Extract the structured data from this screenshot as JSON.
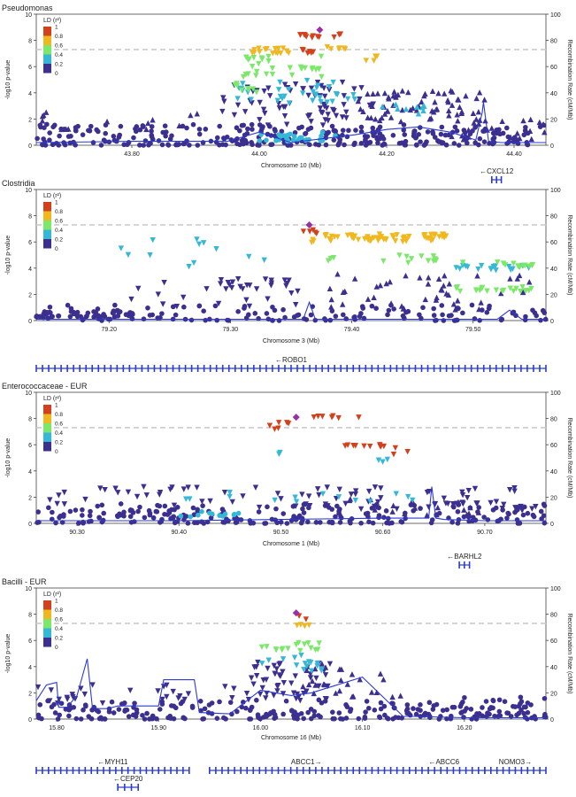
{
  "colors": {
    "ld_0_0.2": "#3b2f8f",
    "ld_0.2_0.4": "#35b8d6",
    "ld_0.4_0.6": "#7be86a",
    "ld_0.6_0.8": "#f1b71f",
    "ld_0.8_1": "#d3401c",
    "lead": "#9b2fa8",
    "na": "#aaaaaa",
    "recomb": "#2b3bd1",
    "threshold": "#cccccc",
    "gene": "#2b3bd1"
  },
  "legend": {
    "title": "LD (r²)",
    "ticks": [
      "1",
      "0.8",
      "0.6",
      "0.4",
      "0.2",
      "0"
    ]
  },
  "y_left_label": "-log10 p-value",
  "y_right_label": "Recombination Rate (cM/Mb)",
  "chart_data": [
    {
      "type": "scatter",
      "title": "Pseudomonas",
      "xlabel": "Chromosome 10 (Mb)",
      "xlim": [
        43.65,
        44.45
      ],
      "xticks": [
        "43.80",
        "44.00",
        "44.20",
        "44.40"
      ],
      "xtick_values": [
        43.8,
        44.0,
        44.2,
        44.4
      ],
      "ylim": [
        0,
        10
      ],
      "yticks": [
        "0",
        "2",
        "4",
        "6",
        "8",
        "10"
      ],
      "y2ticks": [
        "0",
        "20",
        "40",
        "60",
        "80",
        "100"
      ],
      "threshold": 7.3,
      "lead": {
        "x": 44.095,
        "y": 8.8
      },
      "clusters": [
        {
          "x0": 44.06,
          "x1": 44.13,
          "y0": 8.2,
          "y1": 8.5,
          "n": 12,
          "ld": 4,
          "shape": "down"
        },
        {
          "x0": 43.98,
          "x1": 44.05,
          "y0": 7.0,
          "y1": 7.4,
          "n": 16,
          "ld": 3,
          "shape": "down"
        },
        {
          "x0": 44.05,
          "x1": 44.09,
          "y0": 7.0,
          "y1": 7.3,
          "n": 6,
          "ld": 4,
          "shape": "down"
        },
        {
          "x0": 44.1,
          "x1": 44.14,
          "y0": 7.2,
          "y1": 7.5,
          "n": 6,
          "ld": 3,
          "shape": "down"
        },
        {
          "x0": 44.16,
          "x1": 44.19,
          "y0": 6.4,
          "y1": 6.8,
          "n": 4,
          "ld": 3,
          "shape": "down"
        },
        {
          "x0": 43.96,
          "x1": 44.1,
          "y0": 5.2,
          "y1": 7.0,
          "n": 30,
          "ld": 2,
          "shape": "down"
        },
        {
          "x0": 43.96,
          "x1": 44.0,
          "y0": 4.0,
          "y1": 4.8,
          "n": 8,
          "ld": 2,
          "shape": "down"
        },
        {
          "x0": 43.95,
          "x1": 44.15,
          "y0": 3.2,
          "y1": 5.0,
          "n": 34,
          "ld": 1,
          "shape": "down"
        },
        {
          "x0": 43.94,
          "x1": 44.18,
          "y0": 1.5,
          "y1": 4.8,
          "n": 70,
          "ld": 0,
          "shape": "down"
        },
        {
          "x0": 44.15,
          "x1": 44.36,
          "y0": 1.8,
          "y1": 4.2,
          "n": 70,
          "ld": 0,
          "shape": "up"
        },
        {
          "x0": 44.18,
          "x1": 44.28,
          "y0": 2.4,
          "y1": 3.2,
          "n": 10,
          "ld": 1,
          "shape": "up"
        },
        {
          "x0": 44.0,
          "x1": 44.12,
          "y0": 0.3,
          "y1": 1.0,
          "n": 28,
          "ld": 1,
          "shape": "circle"
        },
        {
          "x0": 43.65,
          "x1": 44.45,
          "y0": 0.0,
          "y1": 1.6,
          "n": 320,
          "ld": 0,
          "shape": "circle"
        },
        {
          "x0": 43.65,
          "x1": 43.92,
          "y0": 1.2,
          "y1": 2.6,
          "n": 14,
          "ld": 0,
          "shape": "up"
        },
        {
          "x0": 44.3,
          "x1": 44.45,
          "y0": 0.4,
          "y1": 2.0,
          "n": 24,
          "ld": 0,
          "shape": "up"
        }
      ],
      "recomb_x": [
        43.65,
        43.8,
        43.95,
        44.0,
        44.05,
        44.1,
        44.15,
        44.2,
        44.25,
        44.3,
        44.34,
        44.35,
        44.352,
        44.36,
        44.38,
        44.45
      ],
      "recomb_y": [
        0.2,
        0.3,
        0.3,
        1.0,
        0.2,
        0.5,
        0.8,
        1.2,
        1.4,
        1.0,
        0.4,
        2.5,
        3.3,
        0.3,
        0.2,
        0.2
      ],
      "genes": [
        {
          "name": "←CXCL12",
          "x0": 44.365,
          "x1": 44.38,
          "row": 0
        }
      ]
    },
    {
      "type": "scatter",
      "title": "Clostridia",
      "xlabel": "Chromosome 3 (Mb)",
      "xlim": [
        79.14,
        79.56
      ],
      "xticks": [
        "79.20",
        "79.30",
        "79.40",
        "79.50"
      ],
      "xtick_values": [
        79.2,
        79.3,
        79.4,
        79.5
      ],
      "ylim": [
        0,
        10
      ],
      "yticks": [
        "0",
        "2",
        "4",
        "6",
        "8",
        "10"
      ],
      "y2ticks": [
        "0",
        "20",
        "40",
        "60",
        "80",
        "100"
      ],
      "threshold": 7.3,
      "lead": {
        "x": 79.365,
        "y": 7.3
      },
      "clusters": [
        {
          "x0": 79.36,
          "x1": 79.372,
          "y0": 6.6,
          "y1": 7.0,
          "n": 5,
          "ld": 4,
          "shape": "down"
        },
        {
          "x0": 79.375,
          "x1": 79.48,
          "y0": 6.0,
          "y1": 6.6,
          "n": 60,
          "ld": 3,
          "shape": "down"
        },
        {
          "x0": 79.36,
          "x1": 79.37,
          "y0": 5.6,
          "y1": 6.4,
          "n": 3,
          "ld": 3,
          "shape": "down"
        },
        {
          "x0": 79.38,
          "x1": 79.39,
          "y0": 4.4,
          "y1": 4.8,
          "n": 3,
          "ld": 2,
          "shape": "down"
        },
        {
          "x0": 79.41,
          "x1": 79.47,
          "y0": 4.4,
          "y1": 5.0,
          "n": 12,
          "ld": 2,
          "shape": "down"
        },
        {
          "x0": 79.49,
          "x1": 79.55,
          "y0": 4.0,
          "y1": 4.5,
          "n": 12,
          "ld": 2,
          "shape": "down"
        },
        {
          "x0": 79.48,
          "x1": 79.55,
          "y0": 3.8,
          "y1": 4.2,
          "n": 18,
          "ld": 1,
          "shape": "down"
        },
        {
          "x0": 79.48,
          "x1": 79.55,
          "y0": 2.2,
          "y1": 2.6,
          "n": 22,
          "ld": 2,
          "shape": "down"
        },
        {
          "x0": 79.2,
          "x1": 79.34,
          "y0": 3.8,
          "y1": 6.2,
          "n": 12,
          "ld": 1,
          "shape": "down"
        },
        {
          "x0": 79.29,
          "x1": 79.35,
          "y0": 2.4,
          "y1": 3.2,
          "n": 20,
          "ld": 0,
          "shape": "down"
        },
        {
          "x0": 79.2,
          "x1": 79.36,
          "y0": 1.0,
          "y1": 3.0,
          "n": 16,
          "ld": 0,
          "shape": "down"
        },
        {
          "x0": 79.38,
          "x1": 79.55,
          "y0": 0.8,
          "y1": 3.6,
          "n": 45,
          "ld": 0,
          "shape": "up"
        },
        {
          "x0": 79.14,
          "x1": 79.56,
          "y0": 0.0,
          "y1": 1.2,
          "n": 140,
          "ld": 0,
          "shape": "circle"
        },
        {
          "x0": 79.14,
          "x1": 79.22,
          "y0": 0.3,
          "y1": 0.7,
          "n": 40,
          "ld": 0,
          "shape": "circle"
        }
      ],
      "recomb_x": [
        79.14,
        79.3,
        79.36,
        79.365,
        79.37,
        79.45,
        79.52,
        79.53,
        79.54,
        79.56
      ],
      "recomb_y": [
        0.1,
        0.1,
        0.1,
        1.4,
        0.1,
        0.1,
        0.1,
        0.8,
        0.1,
        0.1
      ],
      "genes": [
        {
          "name": "←ROBO1",
          "x0": 79.14,
          "x1": 79.56,
          "row": 0
        }
      ]
    },
    {
      "type": "scatter",
      "title": "Enterococcaceae - EUR",
      "xlabel": "Chromosome 1 (Mb)",
      "xlim": [
        90.26,
        90.76
      ],
      "xticks": [
        "90.30",
        "90.40",
        "90.50",
        "90.60",
        "90.70"
      ],
      "xtick_values": [
        90.3,
        90.4,
        90.5,
        90.6,
        90.7
      ],
      "ylim": [
        0,
        10
      ],
      "yticks": [
        "0",
        "2",
        "4",
        "6",
        "8",
        "10"
      ],
      "y2ticks": [
        "0",
        "20",
        "40",
        "60",
        "80",
        "100"
      ],
      "threshold": 7.3,
      "lead": {
        "x": 90.515,
        "y": 8.1
      },
      "clusters": [
        {
          "x0": 90.53,
          "x1": 90.58,
          "y0": 7.9,
          "y1": 8.2,
          "n": 7,
          "ld": 4,
          "shape": "down"
        },
        {
          "x0": 90.485,
          "x1": 90.51,
          "y0": 7.1,
          "y1": 7.7,
          "n": 6,
          "ld": 4,
          "shape": "down"
        },
        {
          "x0": 90.56,
          "x1": 90.61,
          "y0": 5.8,
          "y1": 6.0,
          "n": 10,
          "ld": 4,
          "shape": "down"
        },
        {
          "x0": 90.61,
          "x1": 90.625,
          "y0": 5.2,
          "y1": 5.8,
          "n": 3,
          "ld": 4,
          "shape": "down"
        },
        {
          "x0": 90.49,
          "x1": 90.5,
          "y0": 5.0,
          "y1": 5.4,
          "n": 2,
          "ld": 1,
          "shape": "down"
        },
        {
          "x0": 90.58,
          "x1": 90.63,
          "y0": 4.6,
          "y1": 5.0,
          "n": 3,
          "ld": 1,
          "shape": "down"
        },
        {
          "x0": 90.39,
          "x1": 90.63,
          "y0": 1.6,
          "y1": 2.4,
          "n": 14,
          "ld": 1,
          "shape": "down"
        },
        {
          "x0": 90.4,
          "x1": 90.46,
          "y0": 0.5,
          "y1": 1.0,
          "n": 12,
          "ld": 1,
          "shape": "circle"
        },
        {
          "x0": 90.27,
          "x1": 90.75,
          "y0": 1.0,
          "y1": 2.8,
          "n": 80,
          "ld": 0,
          "shape": "down"
        },
        {
          "x0": 90.65,
          "x1": 90.72,
          "y0": 1.4,
          "y1": 1.6,
          "n": 14,
          "ld": 0,
          "shape": "down"
        },
        {
          "x0": 90.26,
          "x1": 90.76,
          "y0": 0.0,
          "y1": 1.5,
          "n": 230,
          "ld": 0,
          "shape": "circle"
        },
        {
          "x0": 90.55,
          "x1": 90.7,
          "y0": 0.6,
          "y1": 2.0,
          "n": 20,
          "ld": 0,
          "shape": "up"
        }
      ],
      "recomb_x": [
        90.26,
        90.4,
        90.5,
        90.6,
        90.645,
        90.648,
        90.652,
        90.66,
        90.7,
        90.76
      ],
      "recomb_y": [
        0.2,
        0.2,
        0.3,
        0.4,
        0.4,
        2.8,
        0.4,
        0.3,
        0.2,
        0.2
      ],
      "genes": [
        {
          "name": "←BARHL2",
          "x0": 90.675,
          "x1": 90.685,
          "row": 0
        }
      ]
    },
    {
      "type": "scatter",
      "title": "Bacilli - EUR",
      "xlabel": "Chromosome 16 (Mb)",
      "xlim": [
        15.78,
        16.28
      ],
      "xticks": [
        "15.80",
        "15.90",
        "16.00",
        "16.10",
        "16.20"
      ],
      "xtick_values": [
        15.8,
        15.9,
        16.0,
        16.1,
        16.2
      ],
      "ylim": [
        0,
        10
      ],
      "yticks": [
        "0",
        "2",
        "4",
        "6",
        "8",
        "10"
      ],
      "y2ticks": [
        "0",
        "20",
        "40",
        "60",
        "80",
        "100"
      ],
      "threshold": 7.3,
      "lead": {
        "x": 16.035,
        "y": 8.1
      },
      "clusters": [
        {
          "x0": 16.035,
          "x1": 16.045,
          "y0": 7.6,
          "y1": 7.9,
          "n": 2,
          "ld": 4,
          "shape": "down"
        },
        {
          "x0": 16.03,
          "x1": 16.05,
          "y0": 6.9,
          "y1": 7.2,
          "n": 4,
          "ld": 3,
          "shape": "down"
        },
        {
          "x0": 16.0,
          "x1": 16.06,
          "y0": 5.2,
          "y1": 5.9,
          "n": 16,
          "ld": 2,
          "shape": "down"
        },
        {
          "x0": 16.0,
          "x1": 16.06,
          "y0": 3.6,
          "y1": 5.0,
          "n": 16,
          "ld": 1,
          "shape": "down"
        },
        {
          "x0": 15.99,
          "x1": 16.07,
          "y0": 1.4,
          "y1": 4.4,
          "n": 50,
          "ld": 0,
          "shape": "down"
        },
        {
          "x0": 16.04,
          "x1": 16.14,
          "y0": 1.4,
          "y1": 4.4,
          "n": 28,
          "ld": 0,
          "shape": "up"
        },
        {
          "x0": 15.78,
          "x1": 15.99,
          "y0": 1.2,
          "y1": 2.6,
          "n": 30,
          "ld": 0,
          "shape": "down"
        },
        {
          "x0": 16.14,
          "x1": 16.28,
          "y0": 0.2,
          "y1": 1.8,
          "n": 25,
          "ld": 0,
          "shape": "circle"
        },
        {
          "x0": 15.78,
          "x1": 16.28,
          "y0": 0.0,
          "y1": 1.5,
          "n": 240,
          "ld": 0,
          "shape": "circle"
        }
      ],
      "recomb_x": [
        15.78,
        15.79,
        15.8,
        15.802,
        15.81,
        15.82,
        15.83,
        15.835,
        15.84,
        15.85,
        15.86,
        15.88,
        15.9,
        15.905,
        15.935,
        15.94,
        15.97,
        16.0,
        16.03,
        16.05,
        16.1,
        16.14,
        16.15,
        16.2,
        16.28
      ],
      "recomb_y": [
        1.4,
        2.6,
        2.8,
        0.9,
        0.9,
        1.8,
        4.6,
        0.9,
        0.8,
        0.8,
        1.0,
        1.0,
        1.0,
        3.0,
        3.0,
        0.5,
        0.4,
        2.2,
        1.8,
        2.0,
        3.2,
        0.2,
        0.2,
        0.1,
        0.1
      ],
      "genes": [
        {
          "name": "←MYH11",
          "x0": 15.78,
          "x1": 15.93,
          "row": 0
        },
        {
          "name": "←CEP20",
          "x0": 15.86,
          "x1": 15.88,
          "row": 1
        },
        {
          "name": "ABCC1→",
          "x0": 15.95,
          "x1": 16.14,
          "row": 0
        },
        {
          "name": "←ABCC6",
          "x0": 16.14,
          "x1": 16.22,
          "row": 0
        },
        {
          "name": "NOMO3→",
          "x0": 16.22,
          "x1": 16.28,
          "row": 0
        }
      ]
    }
  ]
}
